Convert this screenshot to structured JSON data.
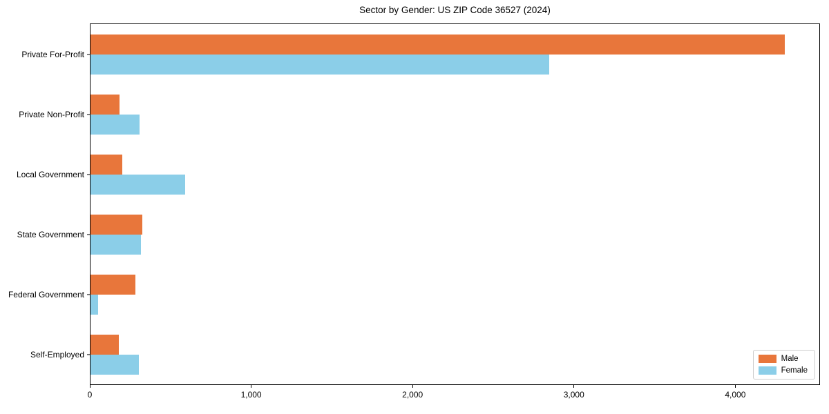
{
  "title": "Sector by Gender: US ZIP Code 36527 (2024)",
  "colors": {
    "male": "#E8763B",
    "female": "#8BCEE8",
    "axis": "#000000",
    "background": "#FFFFFF",
    "legend_border": "#CCCCCC"
  },
  "chart_data": {
    "type": "bar",
    "orientation": "horizontal",
    "title": "Sector by Gender: US ZIP Code 36527 (2024)",
    "categories": [
      "Private For-Profit",
      "Private Non-Profit",
      "Local Government",
      "State Government",
      "Federal Government",
      "Self-Employed"
    ],
    "series": [
      {
        "name": "Male",
        "color": "#E8763B",
        "values": [
          4310,
          180,
          198,
          320,
          280,
          176
        ]
      },
      {
        "name": "Female",
        "color": "#8BCEE8",
        "values": [
          2850,
          305,
          586,
          314,
          48,
          299
        ]
      }
    ],
    "xlabel": "",
    "ylabel": "",
    "xlim": [
      0,
      4525
    ],
    "xticks": [
      0,
      1000,
      2000,
      3000,
      4000
    ],
    "xtick_labels": [
      "0",
      "1,000",
      "2,000",
      "3,000",
      "4,000"
    ],
    "grid": false,
    "legend_position": "lower right"
  },
  "legend": {
    "items": [
      {
        "label": "Male"
      },
      {
        "label": "Female"
      }
    ]
  }
}
